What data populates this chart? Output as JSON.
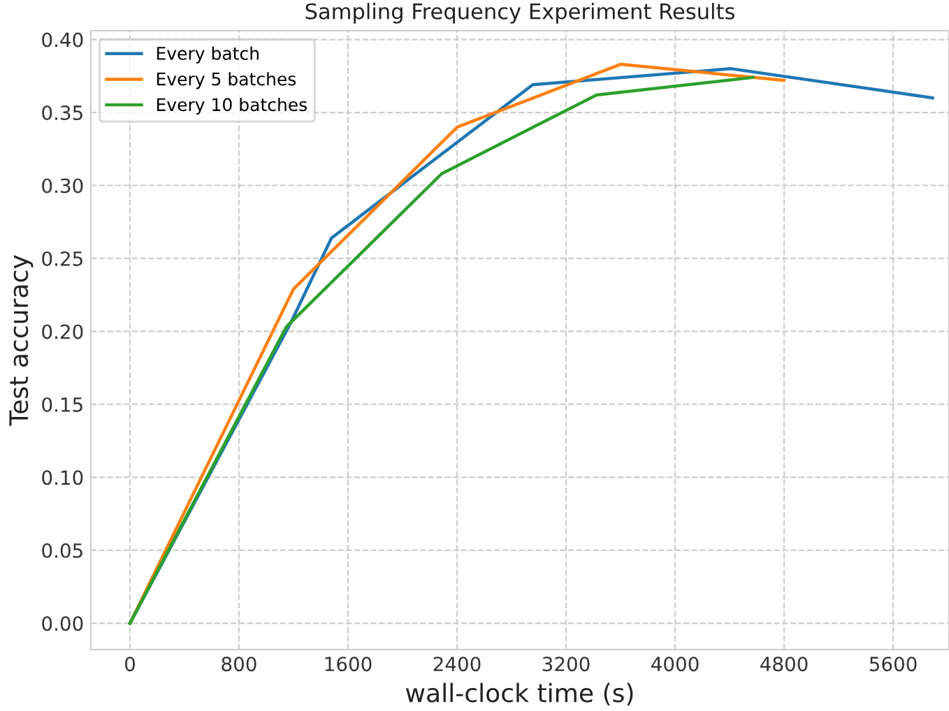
{
  "chart_data": {
    "type": "line",
    "title": "Sampling Frequency Experiment Results",
    "xlabel": "wall-clock time (s)",
    "ylabel": "Test accuracy",
    "series": [
      {
        "name": "Every batch",
        "color": "#1f77b4",
        "x": [
          0,
          1175,
          1479,
          2956,
          4412,
          5889
        ],
        "values": [
          0.0,
          0.205,
          0.264,
          0.369,
          0.38,
          0.36
        ]
      },
      {
        "name": "Every 5 batches",
        "color": "#ff7f0e",
        "x": [
          0,
          1200,
          2402,
          3600,
          4798
        ],
        "values": [
          0.0,
          0.229,
          0.34,
          0.383,
          0.372
        ]
      },
      {
        "name": "Every 10 batches",
        "color": "#2ca02c",
        "x": [
          0,
          1147,
          2287,
          3424,
          4572
        ],
        "values": [
          0.0,
          0.203,
          0.308,
          0.362,
          0.374
        ]
      }
    ],
    "xlim": [
      -287,
      6010
    ],
    "ylim": [
      -0.018,
      0.406
    ],
    "xticks": [
      0,
      800,
      1600,
      2400,
      3200,
      4000,
      4800,
      5600
    ],
    "yticks": [
      {
        "value": 0,
        "label": "0.00"
      },
      {
        "value": 0.05,
        "label": "0.05"
      },
      {
        "value": 0.1,
        "label": "0.10"
      },
      {
        "value": 0.15,
        "label": "0.15"
      },
      {
        "value": 0.2,
        "label": "0.20"
      },
      {
        "value": 0.25,
        "label": "0.25"
      },
      {
        "value": 0.3,
        "label": "0.30"
      },
      {
        "value": 0.35,
        "label": "0.35"
      },
      {
        "value": 0.4,
        "label": "0.40"
      }
    ],
    "grid": true,
    "legend": "top left",
    "marker": "none",
    "line_style": "solid"
  }
}
